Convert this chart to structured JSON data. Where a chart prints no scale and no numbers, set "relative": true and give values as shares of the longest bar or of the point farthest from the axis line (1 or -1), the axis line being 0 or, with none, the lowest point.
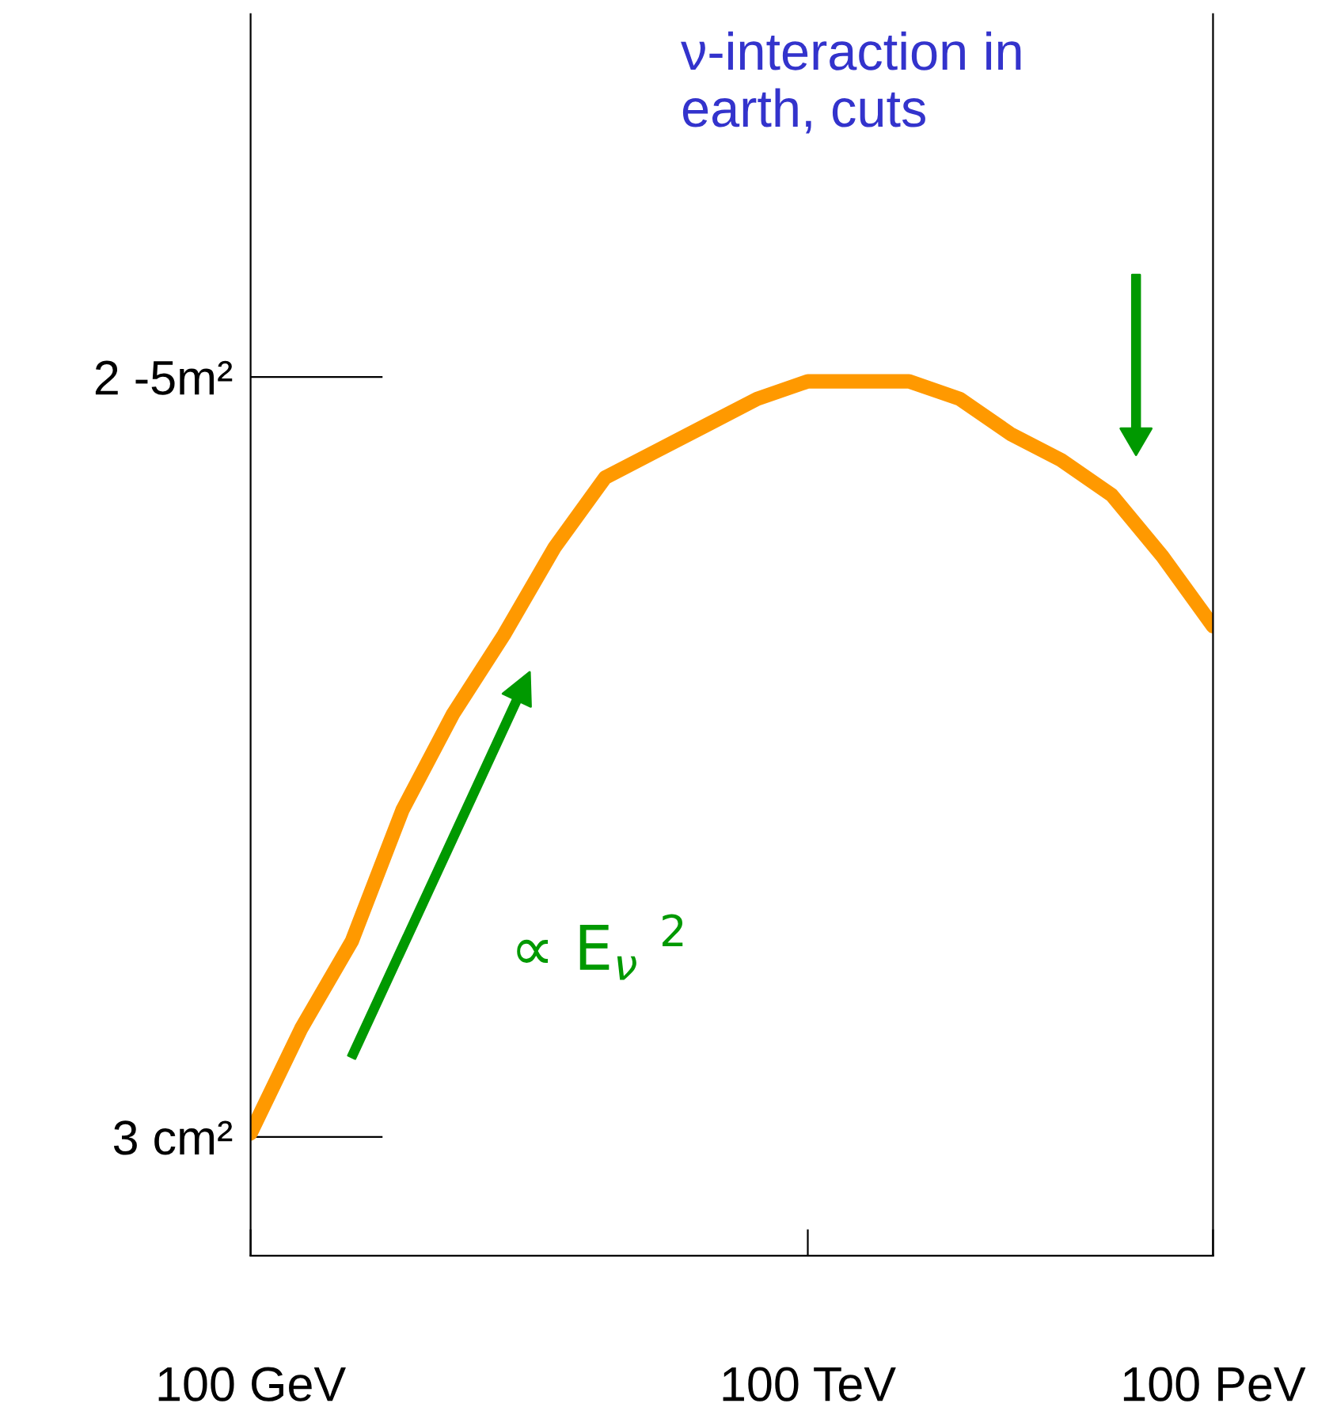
{
  "chart_data": {
    "type": "line",
    "relative": true,
    "categories": [
      "100 GeV",
      null,
      null,
      null,
      null,
      null,
      null,
      null,
      null,
      null,
      null,
      "100 TeV",
      null,
      null,
      null,
      null,
      null,
      null,
      null,
      "100 PeV"
    ],
    "series": [
      {
        "color": "#ff9900",
        "values": [
          0.14,
          0.26,
          0.36,
          0.51,
          0.62,
          0.71,
          0.81,
          0.89,
          0.92,
          0.95,
          0.98,
          1.0,
          1.0,
          1.0,
          0.98,
          0.94,
          0.91,
          0.87,
          0.8,
          0.72
        ]
      }
    ],
    "grid": false,
    "legend": false,
    "marker": "none",
    "line_style": "solid",
    "annotations": [
      "ν-interaction in earth, cuts",
      "∝ E$_{ν}$ $^{2}$",
      "2 -5m²",
      "3 cm²"
    ]
  }
}
